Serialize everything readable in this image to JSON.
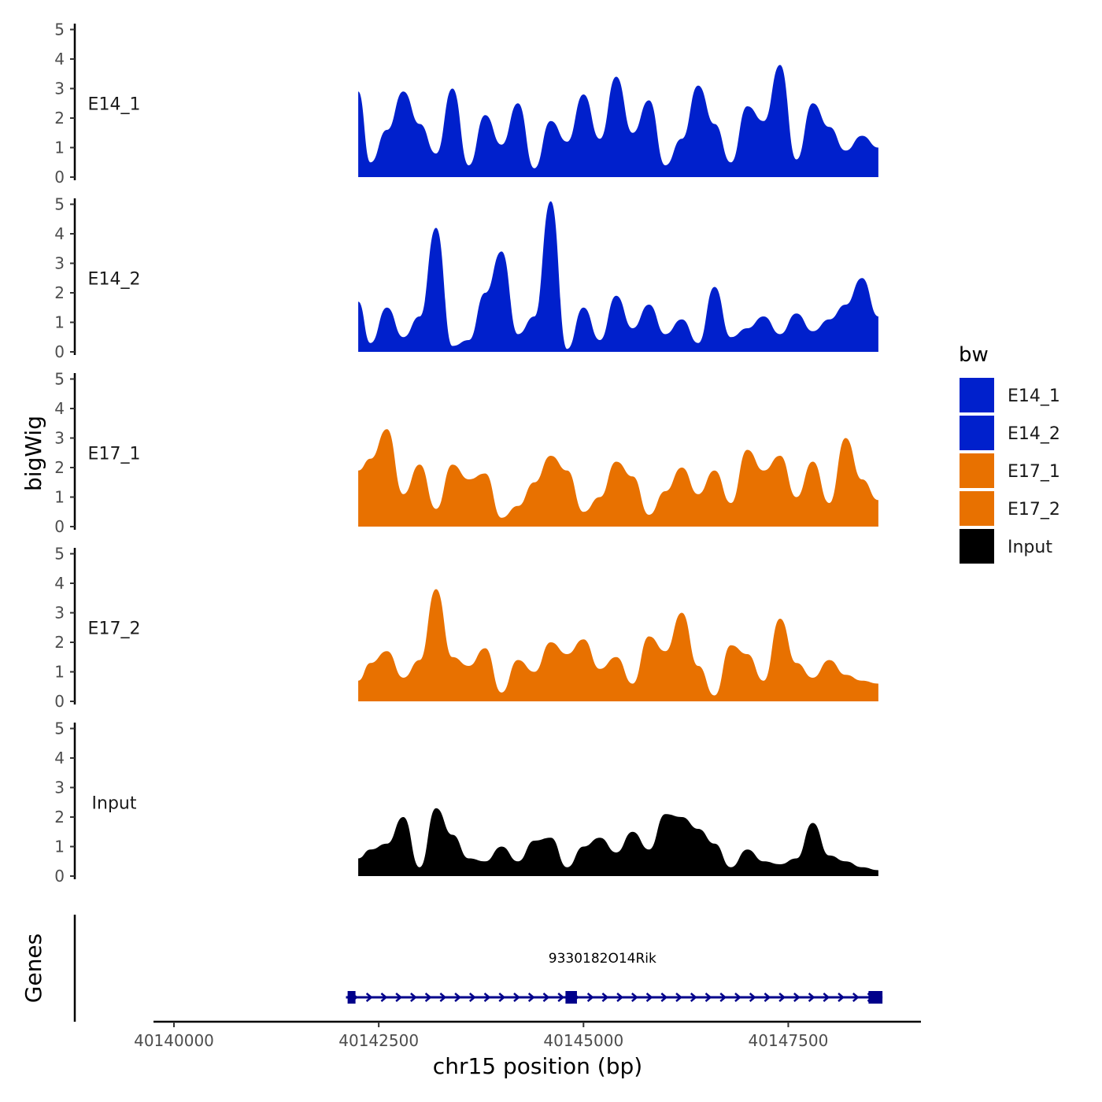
{
  "chart_data": {
    "type": "area",
    "title": "",
    "xlabel": "chr15 position (bp)",
    "ylabel": "bigWig",
    "gene_panel_label": "Genes",
    "xlim": [
      40139750,
      40149120
    ],
    "ylim": [
      0,
      5.2
    ],
    "x_ticks": [
      40140000,
      40142500,
      40145000,
      40147500
    ],
    "x_tick_labels": [
      "40140000",
      "40142500",
      "40145000",
      "40147500"
    ],
    "y_ticks": [
      0,
      1,
      2,
      3,
      4,
      5
    ],
    "y_tick_labels": [
      "0",
      "1",
      "2",
      "3",
      "4",
      "5"
    ],
    "legend": {
      "title": "bw",
      "position": "right",
      "entries": [
        {
          "name": "E14_1",
          "color": "#0020CC"
        },
        {
          "name": "E14_2",
          "color": "#0020CC"
        },
        {
          "name": "E17_1",
          "color": "#E87100"
        },
        {
          "name": "E17_2",
          "color": "#E87100"
        },
        {
          "name": "Input",
          "color": "#000000"
        }
      ]
    },
    "series": [
      {
        "name": "E14_1",
        "label": "E14_1",
        "color": "#0020CC",
        "x": [
          40142250,
          40142400,
          40142600,
          40142800,
          40143000,
          40143200,
          40143400,
          40143600,
          40143800,
          40144000,
          40144200,
          40144400,
          40144600,
          40144800,
          40145000,
          40145200,
          40145400,
          40145600,
          40145800,
          40146000,
          40146200,
          40146400,
          40146600,
          40146800,
          40147000,
          40147200,
          40147400,
          40147600,
          40147800,
          40148000,
          40148200,
          40148400,
          40148600
        ],
        "values": [
          2.9,
          0.5,
          1.6,
          2.9,
          1.8,
          0.8,
          3.0,
          0.4,
          2.1,
          1.1,
          2.5,
          0.3,
          1.9,
          1.2,
          2.8,
          1.3,
          3.4,
          1.5,
          2.6,
          0.4,
          1.3,
          3.1,
          1.8,
          0.5,
          2.4,
          1.9,
          3.8,
          0.6,
          2.5,
          1.7,
          0.9,
          1.4,
          1.0
        ]
      },
      {
        "name": "E14_2",
        "label": "E14_2",
        "color": "#0020CC",
        "x": [
          40142250,
          40142400,
          40142600,
          40142800,
          40143000,
          40143200,
          40143400,
          40143600,
          40143800,
          40144000,
          40144200,
          40144400,
          40144600,
          40144800,
          40145000,
          40145200,
          40145400,
          40145600,
          40145800,
          40146000,
          40146200,
          40146400,
          40146600,
          40146800,
          40147000,
          40147200,
          40147400,
          40147600,
          40147800,
          40148000,
          40148200,
          40148400,
          40148600
        ],
        "values": [
          1.7,
          0.3,
          1.5,
          0.5,
          1.2,
          4.2,
          0.2,
          0.4,
          2.0,
          3.4,
          0.6,
          1.2,
          5.1,
          0.1,
          1.5,
          0.4,
          1.9,
          0.8,
          1.6,
          0.6,
          1.1,
          0.3,
          2.2,
          0.5,
          0.8,
          1.2,
          0.6,
          1.3,
          0.7,
          1.1,
          1.6,
          2.5,
          1.2
        ]
      },
      {
        "name": "E17_1",
        "label": "E17_1",
        "color": "#E87100",
        "x": [
          40142250,
          40142400,
          40142600,
          40142800,
          40143000,
          40143200,
          40143400,
          40143600,
          40143800,
          40144000,
          40144200,
          40144400,
          40144600,
          40144800,
          40145000,
          40145200,
          40145400,
          40145600,
          40145800,
          40146000,
          40146200,
          40146400,
          40146600,
          40146800,
          40147000,
          40147200,
          40147400,
          40147600,
          40147800,
          40148000,
          40148200,
          40148400,
          40148600
        ],
        "values": [
          1.9,
          2.3,
          3.3,
          1.1,
          2.1,
          0.6,
          2.1,
          1.6,
          1.8,
          0.3,
          0.7,
          1.5,
          2.4,
          1.9,
          0.5,
          1.0,
          2.2,
          1.7,
          0.4,
          1.2,
          2.0,
          1.1,
          1.9,
          0.8,
          2.6,
          1.9,
          2.4,
          1.0,
          2.2,
          0.8,
          3.0,
          1.6,
          0.9
        ]
      },
      {
        "name": "E17_2",
        "label": "E17_2",
        "color": "#E87100",
        "x": [
          40142250,
          40142400,
          40142600,
          40142800,
          40143000,
          40143200,
          40143400,
          40143600,
          40143800,
          40144000,
          40144200,
          40144400,
          40144600,
          40144800,
          40145000,
          40145200,
          40145400,
          40145600,
          40145800,
          40146000,
          40146200,
          40146400,
          40146600,
          40146800,
          40147000,
          40147200,
          40147400,
          40147600,
          40147800,
          40148000,
          40148200,
          40148400,
          40148600
        ],
        "values": [
          0.7,
          1.3,
          1.7,
          0.8,
          1.4,
          3.8,
          1.5,
          1.2,
          1.8,
          0.3,
          1.4,
          1.0,
          2.0,
          1.6,
          2.1,
          1.1,
          1.5,
          0.6,
          2.2,
          1.7,
          3.0,
          1.2,
          0.2,
          1.9,
          1.6,
          0.7,
          2.8,
          1.3,
          0.8,
          1.4,
          0.9,
          0.7,
          0.6
        ]
      },
      {
        "name": "Input",
        "label": "Input",
        "color": "#000000",
        "x": [
          40142250,
          40142400,
          40142600,
          40142800,
          40143000,
          40143200,
          40143400,
          40143600,
          40143800,
          40144000,
          40144200,
          40144400,
          40144600,
          40144800,
          40145000,
          40145200,
          40145400,
          40145600,
          40145800,
          40146000,
          40146200,
          40146400,
          40146600,
          40146800,
          40147000,
          40147200,
          40147400,
          40147600,
          40147800,
          40148000,
          40148200,
          40148400,
          40148600
        ],
        "values": [
          0.6,
          0.9,
          1.1,
          2.0,
          0.3,
          2.3,
          1.4,
          0.6,
          0.5,
          1.0,
          0.5,
          1.2,
          1.3,
          0.3,
          1.0,
          1.3,
          0.8,
          1.5,
          0.9,
          2.1,
          2.0,
          1.6,
          1.1,
          0.3,
          0.9,
          0.5,
          0.4,
          0.6,
          1.8,
          0.7,
          0.5,
          0.3,
          0.2
        ]
      }
    ],
    "gene": {
      "name": "9330182O14Rik",
      "start": 40142100,
      "end": 40148650,
      "strand": "+",
      "exons": [
        {
          "start": 40142120,
          "end": 40142210
        },
        {
          "start": 40144780,
          "end": 40144920
        },
        {
          "start": 40148480,
          "end": 40148650
        }
      ],
      "color": "#00008B"
    }
  }
}
